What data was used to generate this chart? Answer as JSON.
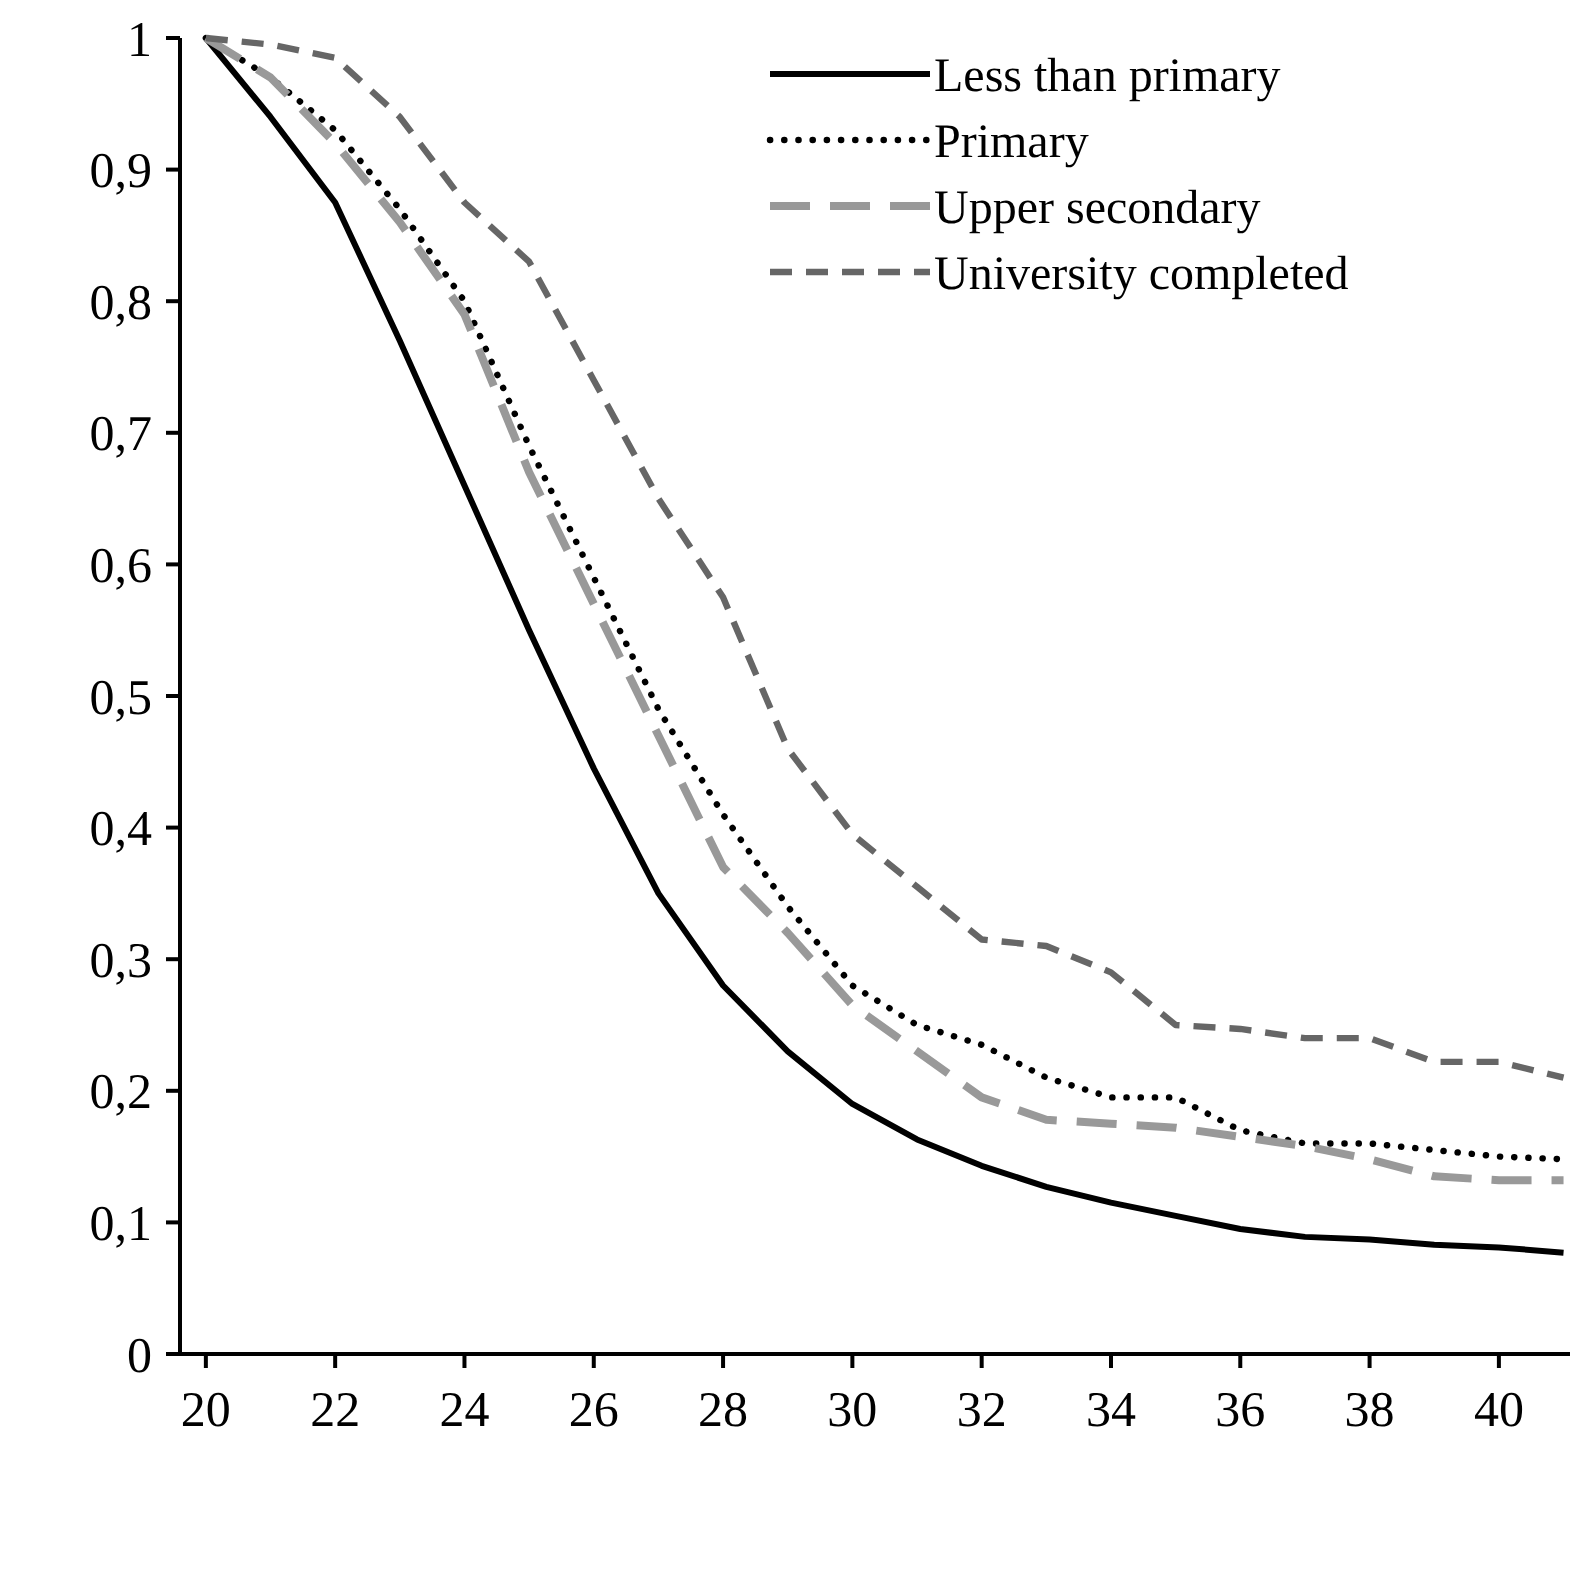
{
  "chart_data": {
    "type": "line",
    "x": [
      20,
      21,
      22,
      23,
      24,
      25,
      26,
      27,
      28,
      29,
      30,
      31,
      32,
      33,
      34,
      35,
      36,
      37,
      38,
      39,
      40,
      41
    ],
    "xlim": [
      19.6,
      41.1
    ],
    "xticks": [
      20,
      22,
      24,
      26,
      28,
      30,
      32,
      34,
      36,
      38,
      40
    ],
    "ylim": [
      0,
      1
    ],
    "yticks": [
      0,
      {
        "value": 0.1,
        "label": "0,1"
      },
      {
        "value": 0.2,
        "label": "0,2"
      },
      {
        "value": 0.3,
        "label": "0,3"
      },
      {
        "value": 0.4,
        "label": "0,4"
      },
      {
        "value": 0.5,
        "label": "0,5"
      },
      {
        "value": 0.6,
        "label": "0,6"
      },
      {
        "value": 0.7,
        "label": "0,7"
      },
      {
        "value": 0.8,
        "label": "0,8"
      },
      {
        "value": 0.9,
        "label": "0,9"
      },
      1
    ],
    "grid": false,
    "legend": "top right",
    "marker": "none",
    "series": [
      {
        "name": "Less than primary",
        "color": "#000000",
        "line_style": "solid",
        "values": [
          1,
          0.94,
          0.875,
          0.77,
          0.66,
          0.55,
          0.445,
          0.35,
          0.28,
          0.23,
          0.19,
          0.163,
          0.143,
          0.127,
          0.115,
          0.105,
          0.095,
          0.089,
          0.087,
          0.083,
          0.081,
          0.077
        ]
      },
      {
        "name": "Primary",
        "color": "#000000",
        "line_style": "dotted",
        "values": [
          1,
          0.97,
          0.93,
          0.87,
          0.8,
          0.69,
          0.59,
          0.49,
          0.41,
          0.34,
          0.28,
          0.25,
          0.235,
          0.21,
          0.195,
          0.195,
          0.17,
          0.16,
          0.16,
          0.155,
          0.15,
          0.148
        ]
      },
      {
        "name": "Upper secondary",
        "color": "#999999",
        "line_style": "dashed",
        "values": [
          1,
          0.97,
          0.92,
          0.86,
          0.79,
          0.67,
          0.57,
          0.47,
          0.37,
          0.32,
          0.265,
          0.23,
          0.195,
          0.178,
          0.175,
          0.172,
          0.165,
          0.158,
          0.148,
          0.135,
          0.132,
          0.132
        ]
      },
      {
        "name": "University completed",
        "color": "#666666",
        "line_style": "dashed",
        "values": [
          1,
          0.995,
          0.985,
          0.94,
          0.875,
          0.83,
          0.74,
          0.65,
          0.575,
          0.46,
          0.395,
          0.355,
          0.315,
          0.31,
          0.29,
          0.25,
          0.247,
          0.24,
          0.24,
          0.222,
          0.222,
          0.21
        ]
      }
    ]
  }
}
